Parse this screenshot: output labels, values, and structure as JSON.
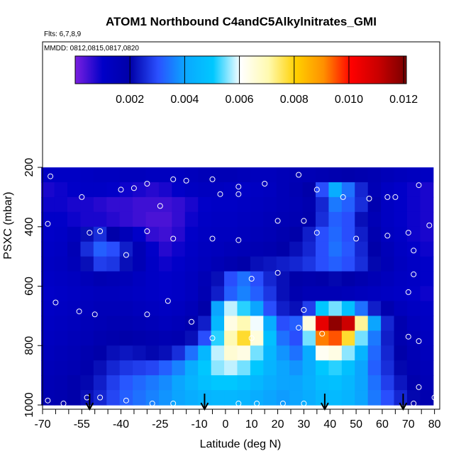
{
  "chart_data": {
    "type": "heatmap",
    "title": "ATOM1 Northbound C4andC5Alkylnitrates_GMI",
    "subtitle_flights": "Flts: 6,7,8,9",
    "subtitle_dates": "MMDD: 0812,0815,0817,0820",
    "xlabel": "Latitude (deg N)",
    "ylabel": "PSXC (mbar)",
    "xlim": [
      -70,
      82
    ],
    "ylim": [
      1000,
      100
    ],
    "y_reversed": true,
    "x_ticks": [
      -70,
      -55,
      -40,
      -25,
      -10,
      0,
      10,
      20,
      30,
      40,
      50,
      60,
      70,
      80
    ],
    "x_tick_labels": [
      "-70",
      "-55",
      "-40",
      "-25",
      "-10",
      "0",
      "10",
      "20",
      "30",
      "40",
      "50",
      "60",
      "70",
      "80"
    ],
    "x_minor_ticks": [
      -65,
      -60,
      -50,
      -45,
      -35,
      -30,
      -20,
      -15,
      -5,
      5,
      15,
      25,
      35,
      45,
      55,
      65,
      75
    ],
    "y_ticks": [
      200,
      400,
      600,
      800,
      1000
    ],
    "y_tick_labels": [
      "200",
      "400",
      "600",
      "800",
      "1000"
    ],
    "colorbar": {
      "range": [
        0,
        0.0121
      ],
      "ticks": [
        0.002,
        0.004,
        0.006,
        0.008,
        0.01,
        0.012
      ],
      "tick_labels": [
        "0.002",
        "0.004",
        "0.006",
        "0.008",
        "0.010",
        "0.012"
      ],
      "colors": [
        "#7b1fe0",
        "#0000c8",
        "#0000a8",
        "#2a50ff",
        "#0aa8ff",
        "#00c8ff",
        "#ffffff",
        "#fffab0",
        "#ffd000",
        "#ff9000",
        "#ff0000",
        "#c80000",
        "#780000"
      ]
    },
    "x_cells": [
      -68,
      -63,
      -58,
      -53,
      -48,
      -43,
      -38,
      -33,
      -28,
      -23,
      -18,
      -13,
      -8,
      -3,
      2,
      7,
      12,
      17,
      22,
      27,
      32,
      37,
      42,
      47,
      52,
      57,
      62,
      67,
      72,
      77
    ],
    "y_levels": [
      225,
      275,
      325,
      375,
      425,
      475,
      525,
      575,
      625,
      675,
      725,
      775,
      825,
      875,
      925,
      975
    ],
    "z_values": [
      [
        0.0011,
        0.0011,
        0.0011,
        0.0012,
        0.0013,
        0.0013,
        0.0014,
        0.0014,
        0.0013,
        0.0013,
        0.0013,
        0.0014,
        0.0015,
        0.0016,
        0.0016,
        0.0015,
        0.0014,
        0.0014,
        0.0015,
        0.0016,
        0.0016,
        0.0017,
        0.0018,
        0.0019,
        0.0018,
        0.0017,
        0.0015,
        0.0014,
        0.0013,
        0.0012
      ],
      [
        0.0008,
        0.0009,
        0.001,
        0.0011,
        0.0011,
        0.001,
        0.0009,
        0.0008,
        0.0007,
        0.0008,
        0.001,
        0.0012,
        0.0013,
        0.0013,
        0.0012,
        0.0011,
        0.0012,
        0.0013,
        0.0015,
        0.0017,
        0.002,
        0.003,
        0.0042,
        0.0034,
        0.0025,
        0.0016,
        0.0012,
        0.001,
        0.0009,
        0.0008
      ],
      [
        0.0009,
        0.0009,
        0.0008,
        0.0008,
        0.0007,
        0.0006,
        0.0006,
        0.0005,
        0.0005,
        0.0005,
        0.0006,
        0.0008,
        0.001,
        0.0011,
        0.0011,
        0.0012,
        0.0013,
        0.0014,
        0.0015,
        0.0016,
        0.0018,
        0.0025,
        0.0035,
        0.0032,
        0.0026,
        0.0018,
        0.0012,
        0.001,
        0.0009,
        0.0008
      ],
      [
        0.001,
        0.001,
        0.0009,
        0.0008,
        0.0008,
        0.0007,
        0.0006,
        0.0005,
        0.0004,
        0.0004,
        0.0006,
        0.0009,
        0.0011,
        0.0012,
        0.0012,
        0.0013,
        0.0014,
        0.0015,
        0.0016,
        0.0017,
        0.0019,
        0.0026,
        0.0032,
        0.003,
        0.0022,
        0.0016,
        0.0012,
        0.001,
        0.0009,
        0.0008
      ],
      [
        0.001,
        0.0011,
        0.0014,
        0.0022,
        0.0026,
        0.002,
        0.0015,
        0.001,
        0.0006,
        0.0005,
        0.0007,
        0.001,
        0.0012,
        0.0013,
        0.0013,
        0.0014,
        0.0015,
        0.0016,
        0.0018,
        0.002,
        0.0024,
        0.003,
        0.0033,
        0.003,
        0.0024,
        0.0018,
        0.0013,
        0.0011,
        0.0009,
        0.0008
      ],
      [
        0.0011,
        0.0012,
        0.0016,
        0.0026,
        0.0032,
        0.003,
        0.0024,
        0.0016,
        0.001,
        0.0007,
        0.0009,
        0.0011,
        0.0013,
        0.0014,
        0.0015,
        0.0016,
        0.0017,
        0.0018,
        0.002,
        0.0022,
        0.0025,
        0.003,
        0.0034,
        0.0031,
        0.0025,
        0.002,
        0.0015,
        0.0012,
        0.001,
        0.0009
      ],
      [
        0.0012,
        0.0013,
        0.0015,
        0.0022,
        0.0028,
        0.0027,
        0.0022,
        0.0016,
        0.0011,
        0.0009,
        0.001,
        0.0012,
        0.0014,
        0.0016,
        0.0018,
        0.002,
        0.0022,
        0.0023,
        0.0024,
        0.0025,
        0.0027,
        0.003,
        0.0032,
        0.003,
        0.0026,
        0.0021,
        0.0016,
        0.0013,
        0.0011,
        0.001
      ],
      [
        0.0011,
        0.0012,
        0.0013,
        0.0015,
        0.0017,
        0.0016,
        0.0015,
        0.0013,
        0.0011,
        0.001,
        0.0011,
        0.0013,
        0.0016,
        0.0022,
        0.003,
        0.0034,
        0.003,
        0.0025,
        0.0022,
        0.002,
        0.0019,
        0.002,
        0.0021,
        0.002,
        0.0018,
        0.0016,
        0.0014,
        0.0012,
        0.0011,
        0.001
      ],
      [
        0.001,
        0.0011,
        0.0012,
        0.0013,
        0.0014,
        0.0014,
        0.0013,
        0.0012,
        0.0011,
        0.001,
        0.0011,
        0.0013,
        0.0017,
        0.0024,
        0.0032,
        0.0036,
        0.0032,
        0.0027,
        0.0022,
        0.0018,
        0.0016,
        0.0016,
        0.0016,
        0.0015,
        0.0014,
        0.0013,
        0.0012,
        0.0011,
        0.001,
        0.0009
      ],
      [
        0.0011,
        0.0012,
        0.0013,
        0.0014,
        0.0015,
        0.0015,
        0.0015,
        0.0014,
        0.0013,
        0.0012,
        0.0013,
        0.0015,
        0.002,
        0.004,
        0.0058,
        0.0052,
        0.004,
        0.003,
        0.0024,
        0.0022,
        0.0028,
        0.005,
        0.0055,
        0.0048,
        0.0034,
        0.0024,
        0.0018,
        0.0014,
        0.0012,
        0.0011
      ],
      [
        0.0012,
        0.0013,
        0.0014,
        0.0015,
        0.0016,
        0.0017,
        0.0017,
        0.0016,
        0.0015,
        0.0014,
        0.0015,
        0.0018,
        0.0024,
        0.0045,
        0.0064,
        0.007,
        0.006,
        0.0042,
        0.003,
        0.0032,
        0.0065,
        0.0105,
        0.0118,
        0.011,
        0.0072,
        0.004,
        0.0025,
        0.0018,
        0.0014,
        0.0012
      ],
      [
        0.0013,
        0.0014,
        0.0015,
        0.0016,
        0.0018,
        0.0019,
        0.002,
        0.0019,
        0.0018,
        0.0017,
        0.0018,
        0.0022,
        0.003,
        0.0052,
        0.007,
        0.0078,
        0.0065,
        0.0048,
        0.0034,
        0.003,
        0.0055,
        0.0092,
        0.0095,
        0.0078,
        0.0055,
        0.0035,
        0.0024,
        0.0018,
        0.0015,
        0.0013
      ],
      [
        0.0014,
        0.0015,
        0.0016,
        0.0018,
        0.002,
        0.0022,
        0.0023,
        0.0022,
        0.0021,
        0.0022,
        0.0026,
        0.0034,
        0.0045,
        0.0058,
        0.0066,
        0.0064,
        0.0055,
        0.0045,
        0.0038,
        0.0034,
        0.0042,
        0.0062,
        0.0064,
        0.0056,
        0.0044,
        0.0033,
        0.0025,
        0.002,
        0.0016,
        0.0014
      ],
      [
        0.0015,
        0.0016,
        0.0017,
        0.0019,
        0.0022,
        0.0025,
        0.0027,
        0.0028,
        0.0029,
        0.0032,
        0.0036,
        0.0042,
        0.005,
        0.0056,
        0.0058,
        0.0055,
        0.005,
        0.0044,
        0.004,
        0.0038,
        0.0042,
        0.005,
        0.0052,
        0.0048,
        0.004,
        0.0032,
        0.0026,
        0.0021,
        0.0017,
        0.0015
      ],
      [
        0.0016,
        0.0017,
        0.0019,
        0.0021,
        0.0024,
        0.0028,
        0.0031,
        0.0033,
        0.0035,
        0.0037,
        0.004,
        0.0044,
        0.0048,
        0.005,
        0.005,
        0.0048,
        0.0045,
        0.0042,
        0.004,
        0.004,
        0.0043,
        0.0047,
        0.0048,
        0.0045,
        0.004,
        0.0034,
        0.0028,
        0.0023,
        0.0019,
        0.0016
      ],
      [
        0.0017,
        0.0018,
        0.002,
        0.0022,
        0.0025,
        0.0029,
        0.0032,
        0.0034,
        0.0036,
        0.0038,
        0.004,
        0.0042,
        0.0044,
        0.0045,
        0.0045,
        0.0044,
        0.0042,
        0.004,
        0.0039,
        0.004,
        0.0042,
        0.0045,
        0.0046,
        0.0044,
        0.004,
        0.0035,
        0.003,
        0.0025,
        0.0021,
        0.0018
      ]
    ],
    "sample_points": [
      {
        "lat": -67,
        "p": 230
      },
      {
        "lat": -40,
        "p": 275
      },
      {
        "lat": -35,
        "p": 270
      },
      {
        "lat": -30,
        "p": 255
      },
      {
        "lat": -20,
        "p": 240
      },
      {
        "lat": -15,
        "p": 245
      },
      {
        "lat": -5,
        "p": 240
      },
      {
        "lat": 5,
        "p": 265
      },
      {
        "lat": 15,
        "p": 255
      },
      {
        "lat": 28,
        "p": 225
      },
      {
        "lat": 45,
        "p": 300
      },
      {
        "lat": 55,
        "p": 305
      },
      {
        "lat": 65,
        "p": 300
      },
      {
        "lat": 74,
        "p": 260
      },
      {
        "lat": -55,
        "p": 300
      },
      {
        "lat": -2,
        "p": 290
      },
      {
        "lat": 5,
        "p": 290
      },
      {
        "lat": 35,
        "p": 275
      },
      {
        "lat": 62,
        "p": 300
      },
      {
        "lat": -25,
        "p": 330
      },
      {
        "lat": -68,
        "p": 390
      },
      {
        "lat": -52,
        "p": 420
      },
      {
        "lat": -48,
        "p": 415
      },
      {
        "lat": -30,
        "p": 415
      },
      {
        "lat": -20,
        "p": 440
      },
      {
        "lat": -5,
        "p": 440
      },
      {
        "lat": 5,
        "p": 445
      },
      {
        "lat": 20,
        "p": 380
      },
      {
        "lat": 30,
        "p": 380
      },
      {
        "lat": 35,
        "p": 420
      },
      {
        "lat": 50,
        "p": 440
      },
      {
        "lat": 62,
        "p": 430
      },
      {
        "lat": 70,
        "p": 420
      },
      {
        "lat": 78,
        "p": 395
      },
      {
        "lat": 72,
        "p": 480
      },
      {
        "lat": -38,
        "p": 495
      },
      {
        "lat": 20,
        "p": 555
      },
      {
        "lat": 10,
        "p": 575
      },
      {
        "lat": 72,
        "p": 560
      },
      {
        "lat": 70,
        "p": 620
      },
      {
        "lat": -65,
        "p": 655
      },
      {
        "lat": -56,
        "p": 685
      },
      {
        "lat": -50,
        "p": 695
      },
      {
        "lat": -30,
        "p": 695
      },
      {
        "lat": -22,
        "p": 650
      },
      {
        "lat": -13,
        "p": 720
      },
      {
        "lat": 30,
        "p": 680
      },
      {
        "lat": 28,
        "p": 740
      },
      {
        "lat": 37,
        "p": 760
      },
      {
        "lat": -5,
        "p": 775
      },
      {
        "lat": 10,
        "p": 775
      },
      {
        "lat": 70,
        "p": 770
      },
      {
        "lat": 74,
        "p": 785
      },
      {
        "lat": 74,
        "p": 940
      },
      {
        "lat": -53,
        "p": 975
      },
      {
        "lat": -48,
        "p": 975
      },
      {
        "lat": -68,
        "p": 985
      },
      {
        "lat": -62,
        "p": 995
      },
      {
        "lat": -38,
        "p": 985
      },
      {
        "lat": -28,
        "p": 995
      },
      {
        "lat": -20,
        "p": 995
      },
      {
        "lat": 5,
        "p": 995
      },
      {
        "lat": 12,
        "p": 995
      },
      {
        "lat": 22,
        "p": 995
      },
      {
        "lat": 30,
        "p": 995
      },
      {
        "lat": 72,
        "p": 995
      },
      {
        "lat": 80,
        "p": 975
      }
    ],
    "arrow_markers_lat": [
      -52,
      -8,
      38,
      68
    ]
  }
}
